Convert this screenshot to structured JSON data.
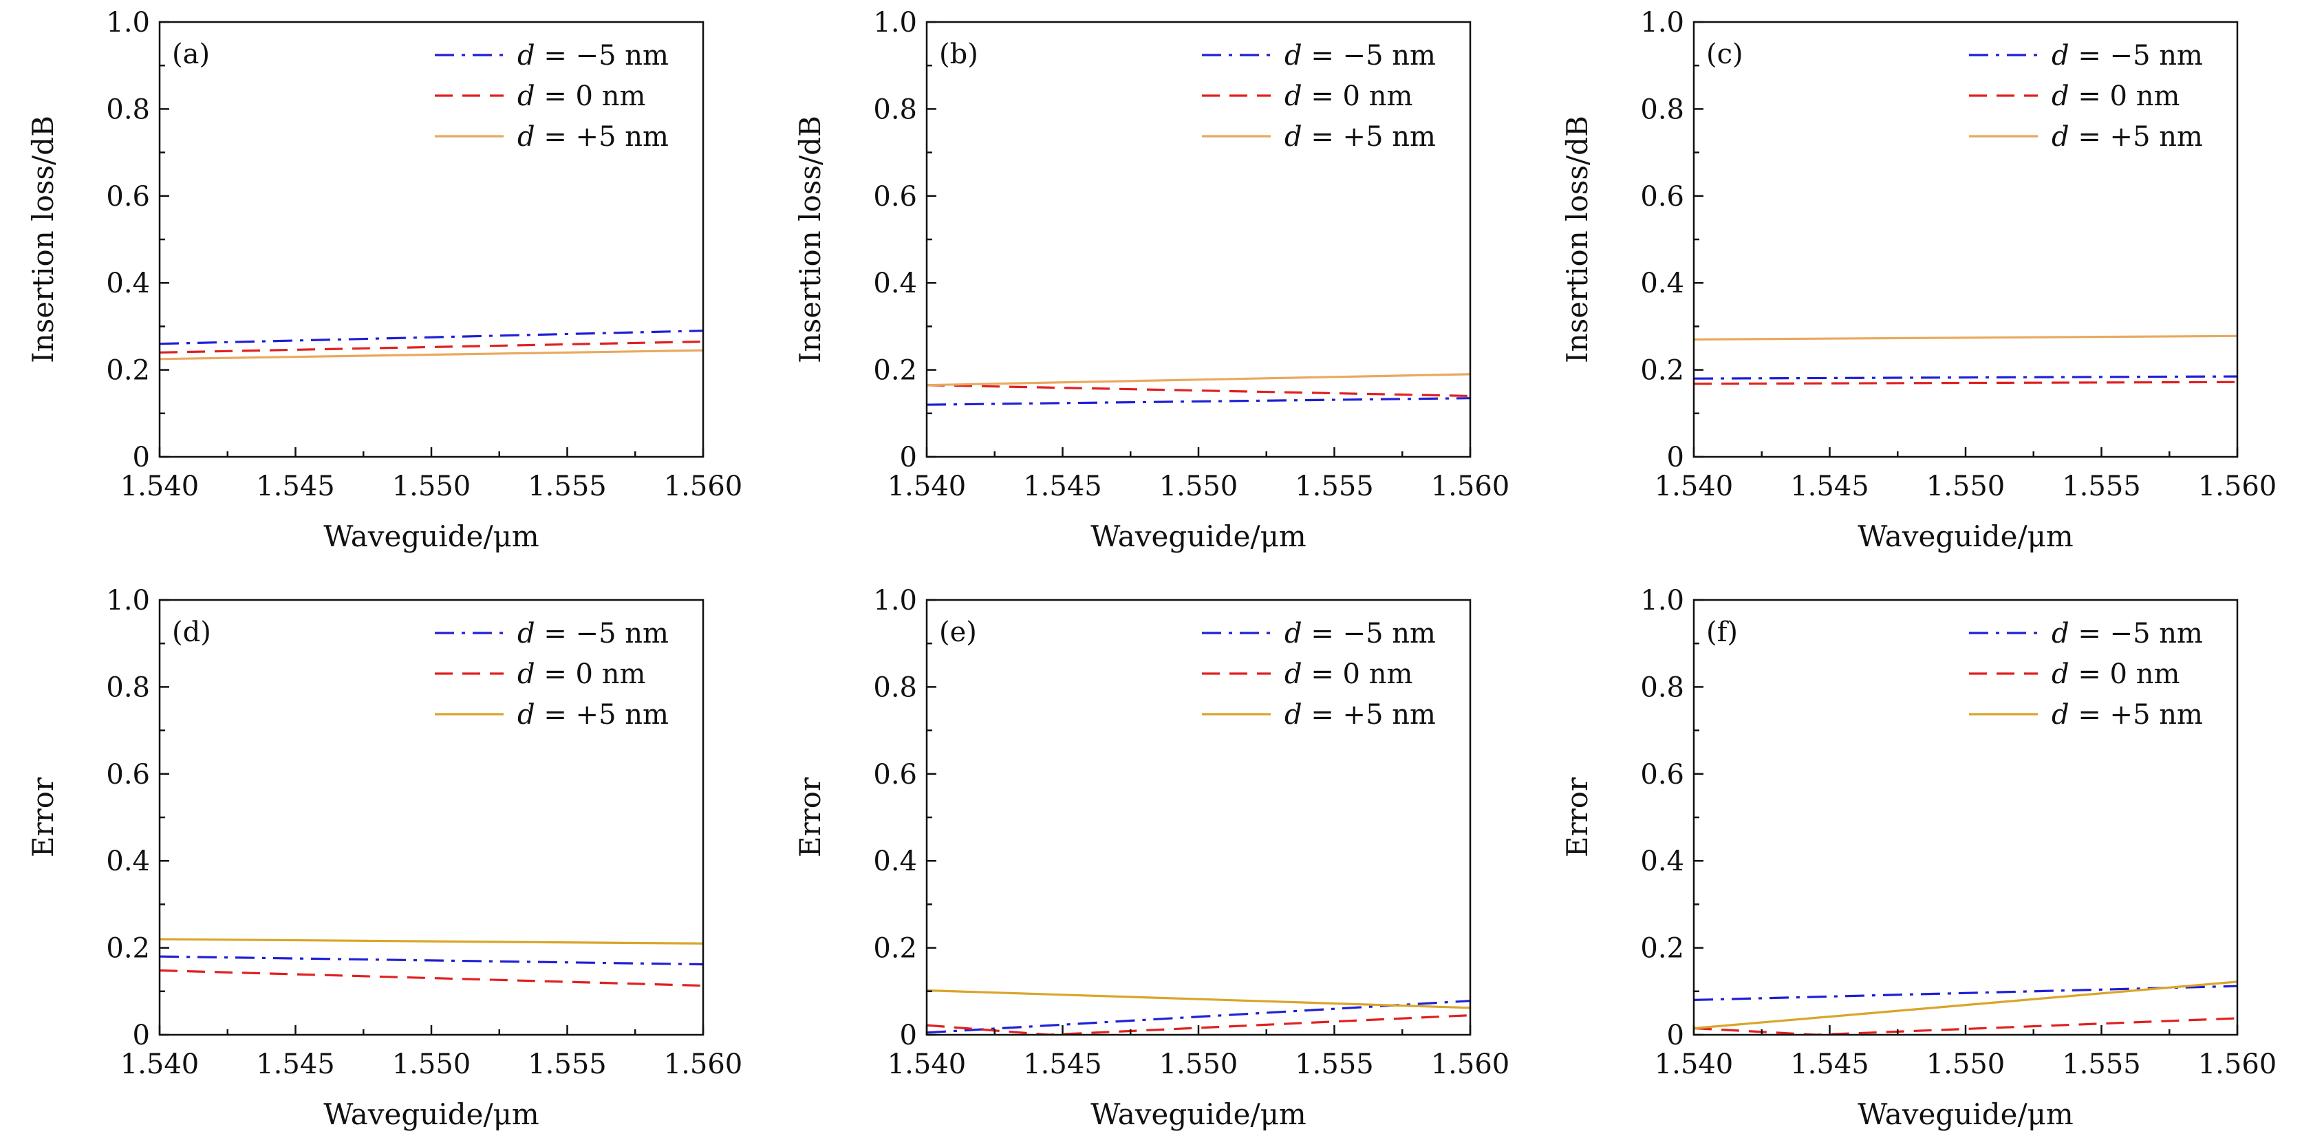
{
  "chart_data": [
    {
      "type": "line",
      "panel": "(a)",
      "xlabel": "Waveguide/μm",
      "ylabel": "Insertion loss/dB",
      "xlim": [
        1.54,
        1.56
      ],
      "ylim": [
        0,
        1.0
      ],
      "xticks": [
        "1.540",
        "1.545",
        "1.550",
        "1.555",
        "1.560"
      ],
      "yticks": [
        "0",
        "0.2",
        "0.4",
        "0.6",
        "0.8",
        "1.0"
      ],
      "x": [
        1.54,
        1.56
      ],
      "series": [
        {
          "name": "d = −5 nm",
          "values": [
            0.26,
            0.29
          ]
        },
        {
          "name": "d = 0 nm",
          "values": [
            0.24,
            0.265
          ]
        },
        {
          "name": "d = +5 nm",
          "values": [
            0.225,
            0.245
          ]
        }
      ]
    },
    {
      "type": "line",
      "panel": "(b)",
      "xlabel": "Waveguide/μm",
      "ylabel": "Insertion loss/dB",
      "xlim": [
        1.54,
        1.56
      ],
      "ylim": [
        0,
        1.0
      ],
      "xticks": [
        "1.540",
        "1.545",
        "1.550",
        "1.555",
        "1.560"
      ],
      "yticks": [
        "0",
        "0.2",
        "0.4",
        "0.6",
        "0.8",
        "1.0"
      ],
      "x": [
        1.54,
        1.56
      ],
      "series": [
        {
          "name": "d = −5 nm",
          "values": [
            0.12,
            0.135
          ]
        },
        {
          "name": "d = 0 nm",
          "values": [
            0.165,
            0.14
          ]
        },
        {
          "name": "d = +5 nm",
          "values": [
            0.165,
            0.19
          ]
        }
      ]
    },
    {
      "type": "line",
      "panel": "(c)",
      "xlabel": "Waveguide/μm",
      "ylabel": "Insertion loss/dB",
      "xlim": [
        1.54,
        1.56
      ],
      "ylim": [
        0,
        1.0
      ],
      "xticks": [
        "1.540",
        "1.545",
        "1.550",
        "1.555",
        "1.560"
      ],
      "yticks": [
        "0",
        "0.2",
        "0.4",
        "0.6",
        "0.8",
        "1.0"
      ],
      "x": [
        1.54,
        1.56
      ],
      "series": [
        {
          "name": "d = −5 nm",
          "values": [
            0.18,
            0.185
          ]
        },
        {
          "name": "d = 0 nm",
          "values": [
            0.168,
            0.172
          ]
        },
        {
          "name": "d = +5 nm",
          "values": [
            0.27,
            0.278
          ]
        }
      ]
    },
    {
      "type": "line",
      "panel": "(d)",
      "xlabel": "Waveguide/μm",
      "ylabel": "Error",
      "xlim": [
        1.54,
        1.56
      ],
      "ylim": [
        0,
        1.0
      ],
      "xticks": [
        "1.540",
        "1.545",
        "1.550",
        "1.555",
        "1.560"
      ],
      "yticks": [
        "0",
        "0.2",
        "0.4",
        "0.6",
        "0.8",
        "1.0"
      ],
      "x": [
        1.54,
        1.56
      ],
      "series": [
        {
          "name": "d = −5 nm",
          "values": [
            0.18,
            0.162
          ]
        },
        {
          "name": "d = 0 nm",
          "values": [
            0.148,
            0.113
          ]
        },
        {
          "name": "d = +5 nm",
          "values": [
            0.22,
            0.21
          ]
        }
      ]
    },
    {
      "type": "line",
      "panel": "(e)",
      "xlabel": "Waveguide/μm",
      "ylabel": "Error",
      "xlim": [
        1.54,
        1.56
      ],
      "ylim": [
        0,
        1.0
      ],
      "xticks": [
        "1.540",
        "1.545",
        "1.550",
        "1.555",
        "1.560"
      ],
      "yticks": [
        "0",
        "0.2",
        "0.4",
        "0.6",
        "0.8",
        "1.0"
      ],
      "x": [
        1.54,
        1.56
      ],
      "series": [
        {
          "name": "d = −5 nm",
          "values": [
            0.005,
            0.078
          ]
        },
        {
          "name": "d = 0 nm",
          "values": [
            0.022,
            0.0,
            0.045
          ],
          "x": [
            1.54,
            1.5445,
            1.56
          ]
        },
        {
          "name": "d = +5 nm",
          "values": [
            0.102,
            0.062
          ]
        }
      ]
    },
    {
      "type": "line",
      "panel": "(f)",
      "xlabel": "Waveguide/μm",
      "ylabel": "Error",
      "xlim": [
        1.54,
        1.56
      ],
      "ylim": [
        0,
        1.0
      ],
      "xticks": [
        "1.540",
        "1.545",
        "1.550",
        "1.555",
        "1.560"
      ],
      "yticks": [
        "0",
        "0.2",
        "0.4",
        "0.6",
        "0.8",
        "1.0"
      ],
      "x": [
        1.54,
        1.56
      ],
      "series": [
        {
          "name": "d = −5 nm",
          "values": [
            0.08,
            0.112
          ]
        },
        {
          "name": "d = 0 nm",
          "values": [
            0.015,
            0.0,
            0.038
          ],
          "x": [
            1.54,
            1.5445,
            1.56
          ]
        },
        {
          "name": "d = +5 nm",
          "values": [
            0.015,
            0.122
          ]
        }
      ]
    }
  ],
  "legend": {
    "entries": [
      {
        "var": "d",
        "rest": " = −5 nm",
        "color": "#1f1fd6",
        "style": "dash-dot"
      },
      {
        "var": "d",
        "rest": " = 0 nm",
        "color": "#e02020",
        "style": "dash"
      },
      {
        "var": "d",
        "rest": " = +5 nm",
        "color": "#e8a95e",
        "style": "solid"
      }
    ]
  },
  "colors": {
    "minus5": "#1f1fd6",
    "zero": "#e02020",
    "plus5": "#e8a95e",
    "plus5_error": "#d9a52a"
  }
}
